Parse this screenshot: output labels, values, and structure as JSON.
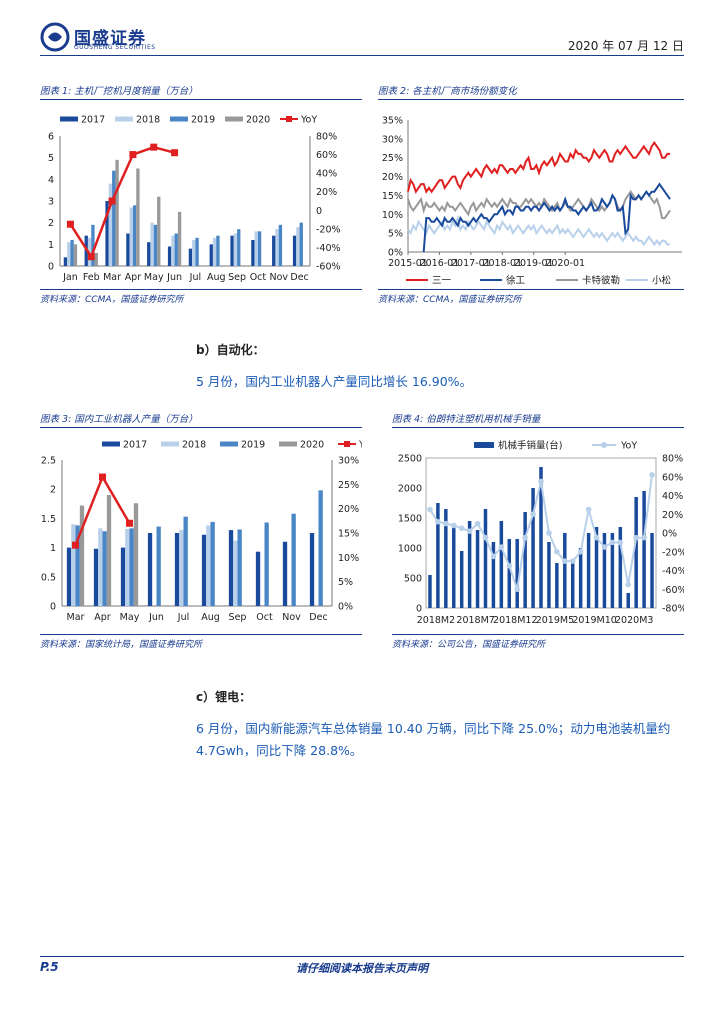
{
  "header": {
    "brand": "国盛证券",
    "brand_sub": "GUOSHENG SECURITIES",
    "date": "2020 年 07 月 12 日"
  },
  "fig1": {
    "caption": "图表 1: 主机厂挖机月度销量（万台）",
    "source": "资料来源：CCMA，国盛证券研究所"
  },
  "fig2": {
    "caption": "图表 2: 各主机厂商市场份额变化",
    "source": "资料来源：CCMA，国盛证券研究所"
  },
  "fig3": {
    "caption": "图表 3: 国内工业机器人产量（万台）",
    "source": "资料来源：国家统计局，国盛证券研究所"
  },
  "fig4": {
    "caption": "图表 4: 伯朗特注塑机用机械手销量",
    "source": "资料来源：公司公告，国盛证券研究所"
  },
  "section_b": {
    "title": "b）自动化：",
    "text": "5 月份，国内工业机器人产量同比增长 16.90%。"
  },
  "section_c": {
    "title": "c）锂电：",
    "text1": "6 月份，国内新能源汽车总体销量 10.40 万辆，同比下降 25.0%；动力电池装机量约",
    "text2": "4.7Gwh，同比下降 28.8%。"
  },
  "footer": {
    "page": "P.5",
    "disclaimer": "请仔细阅读本报告末页声明"
  },
  "colors": {
    "s2017": "#1a4a9c",
    "s2018": "#b8d0ea",
    "s2019": "#4a86c6",
    "s2020": "#999999",
    "yoy": "#e02020",
    "brand": "#1a3c8f"
  },
  "chart_data": [
    {
      "id": "fig1",
      "type": "bar",
      "categories": [
        "Jan",
        "Feb",
        "Mar",
        "Apr",
        "May",
        "Jun",
        "Jul",
        "Aug",
        "Sep",
        "Oct",
        "Nov",
        "Dec"
      ],
      "series": [
        {
          "name": "2017",
          "values": [
            0.4,
            1.4,
            3.0,
            1.5,
            1.1,
            0.9,
            0.8,
            1.0,
            1.4,
            1.2,
            1.4,
            1.4
          ]
        },
        {
          "name": "2018",
          "values": [
            1.1,
            1.3,
            3.8,
            2.7,
            2.0,
            1.4,
            1.2,
            1.3,
            1.5,
            1.6,
            1.7,
            1.8
          ]
        },
        {
          "name": "2019",
          "values": [
            1.2,
            1.9,
            4.4,
            2.8,
            1.9,
            1.5,
            1.3,
            1.4,
            1.7,
            1.6,
            1.9,
            2.0
          ]
        },
        {
          "name": "2020",
          "values": [
            1.0,
            0.6,
            4.9,
            4.5,
            3.2,
            2.5,
            null,
            null,
            null,
            null,
            null,
            null
          ]
        }
      ],
      "yoy": {
        "name": "YoY",
        "values": [
          -15,
          -50,
          10,
          60,
          68,
          62,
          null,
          null,
          null,
          null,
          null,
          null
        ]
      },
      "ylim": [
        0,
        6
      ],
      "yticks": [
        "0",
        "1",
        "2",
        "3",
        "4",
        "5",
        "6"
      ],
      "ylim2": [
        -60,
        80
      ],
      "y2ticks": [
        "-60%",
        "-40%",
        "-20%",
        "0",
        "20%",
        "40%",
        "60%",
        "80%"
      ],
      "legend": [
        "2017",
        "2018",
        "2019",
        "2020",
        "YoY"
      ]
    },
    {
      "id": "fig2",
      "type": "line",
      "xticks": [
        "2015-01",
        "2016-01",
        "2017-01",
        "2018-01",
        "2019-01",
        "2020-01"
      ],
      "yticks": [
        "0%",
        "5%",
        "10%",
        "15%",
        "20%",
        "25%",
        "30%",
        "35%"
      ],
      "ylim": [
        0,
        35
      ],
      "series": [
        {
          "name": "三一",
          "color": "#e02020",
          "values": [
            16,
            19,
            18,
            16,
            17,
            18,
            18,
            16,
            17,
            16,
            17,
            18,
            19,
            19,
            17,
            18,
            19,
            20,
            20,
            18,
            17,
            19,
            20,
            21,
            20,
            21,
            22,
            21,
            20,
            22,
            23,
            22,
            21,
            22,
            21,
            23,
            23,
            22,
            21,
            22,
            22,
            21,
            22,
            23,
            22,
            24,
            25,
            22,
            22,
            23,
            21,
            23,
            24,
            23,
            24,
            25,
            23,
            24,
            26,
            25,
            24,
            24,
            26,
            25,
            27,
            26,
            26,
            25,
            25,
            24,
            25,
            27,
            26,
            25,
            26,
            27,
            26,
            24,
            24,
            26,
            27,
            26,
            27,
            28,
            27,
            26,
            25,
            25,
            26,
            27,
            28,
            27,
            26,
            28,
            29,
            28,
            27,
            25,
            25,
            26,
            26
          ]
        },
        {
          "name": "徐工",
          "color": "#1a4a9c",
          "values": [
            null,
            null,
            null,
            null,
            null,
            null,
            0,
            9,
            9,
            8,
            8,
            9,
            8,
            7,
            9,
            8,
            8,
            9,
            8,
            7,
            9,
            8,
            8,
            7,
            8,
            9,
            8,
            9,
            10,
            9,
            9,
            8,
            9,
            10,
            10,
            11,
            12,
            10,
            11,
            11,
            10,
            12,
            12,
            11,
            11,
            12,
            12,
            11,
            12,
            12,
            11,
            12,
            13,
            12,
            11,
            12,
            11,
            12,
            11,
            12,
            14,
            12,
            12,
            11,
            11,
            10,
            11,
            12,
            11,
            12,
            13,
            11,
            11,
            12,
            14,
            13,
            12,
            13,
            15,
            14,
            11,
            11,
            12,
            5,
            6,
            15,
            14,
            14,
            15,
            14,
            15,
            16,
            15,
            16,
            16,
            17,
            18,
            17,
            16,
            15,
            14
          ]
        },
        {
          "name": "卡特彼勒",
          "color": "#999999",
          "values": [
            14,
            12,
            11,
            12,
            13,
            14,
            11,
            13,
            12,
            12,
            13,
            12,
            11,
            12,
            11,
            13,
            12,
            12,
            11,
            12,
            13,
            12,
            11,
            10,
            12,
            13,
            11,
            12,
            13,
            12,
            14,
            13,
            12,
            13,
            12,
            13,
            14,
            13,
            12,
            14,
            13,
            13,
            12,
            12,
            13,
            14,
            13,
            14,
            13,
            12,
            13,
            12,
            14,
            13,
            12,
            11,
            12,
            13,
            11,
            12,
            13,
            12,
            11,
            12,
            13,
            14,
            13,
            12,
            11,
            12,
            14,
            13,
            12,
            11,
            12,
            11,
            12,
            13,
            15,
            14,
            12,
            11,
            12,
            14,
            15,
            16,
            15,
            14,
            15,
            14,
            15,
            16,
            15,
            14,
            13,
            14,
            12,
            9,
            9,
            10,
            11
          ]
        },
        {
          "name": "小松",
          "color": "#b8d0ea",
          "values": [
            6,
            5,
            7,
            6,
            8,
            7,
            6,
            5,
            7,
            6,
            5,
            6,
            7,
            8,
            6,
            7,
            6,
            8,
            7,
            9,
            6,
            7,
            6,
            8,
            7,
            6,
            7,
            8,
            7,
            6,
            8,
            7,
            6,
            5,
            7,
            6,
            8,
            7,
            6,
            7,
            5,
            6,
            7,
            6,
            5,
            6,
            7,
            6,
            7,
            5,
            6,
            7,
            6,
            5,
            6,
            5,
            6,
            7,
            5,
            6,
            5,
            6,
            5,
            4,
            5,
            6,
            5,
            4,
            5,
            6,
            5,
            4,
            5,
            4,
            5,
            4,
            3,
            4,
            5,
            4,
            5,
            4,
            3,
            4,
            5,
            4,
            3,
            4,
            3,
            3,
            2,
            3,
            4,
            3,
            2,
            3,
            2,
            3,
            3,
            2,
            2
          ]
        }
      ]
    },
    {
      "id": "fig3",
      "type": "bar",
      "categories": [
        "Mar",
        "Apr",
        "May",
        "Jun",
        "Jul",
        "Aug",
        "Sep",
        "Oct",
        "Nov",
        "Dec"
      ],
      "series": [
        {
          "name": "2017",
          "values": [
            1.0,
            0.98,
            1.0,
            1.25,
            1.25,
            1.22,
            1.3,
            0.93,
            1.1,
            1.25
          ]
        },
        {
          "name": "2018",
          "values": [
            1.4,
            1.33,
            1.32,
            null,
            1.3,
            1.38,
            1.12,
            null,
            null,
            null
          ]
        },
        {
          "name": "2019",
          "values": [
            1.38,
            1.28,
            1.33,
            1.36,
            1.53,
            1.44,
            1.31,
            1.43,
            1.58,
            1.98
          ]
        },
        {
          "name": "2020",
          "values": [
            1.72,
            1.9,
            1.76,
            null,
            null,
            null,
            null,
            null,
            null,
            null
          ]
        }
      ],
      "yoy": {
        "name": "YoY",
        "values": [
          12.5,
          26.5,
          17,
          null,
          null,
          null,
          null,
          null,
          null,
          null
        ]
      },
      "ylim": [
        0,
        2.5
      ],
      "yticks": [
        "0",
        "0.5",
        "1",
        "1.5",
        "2",
        "2.5"
      ],
      "ylim2": [
        0,
        30
      ],
      "y2ticks": [
        "0%",
        "5%",
        "10%",
        "15%",
        "20%",
        "25%",
        "30%"
      ],
      "legend": [
        "2017",
        "2018",
        "2019",
        "2020",
        "YoY"
      ]
    },
    {
      "id": "fig4",
      "type": "bar",
      "xticks": [
        "2018M2",
        "2018M7",
        "2018M12",
        "2019M5",
        "2019M10",
        "2020M3"
      ],
      "series": [
        {
          "name": "机械手销量(台)",
          "values": [
            550,
            1750,
            1650,
            1400,
            950,
            1450,
            1300,
            1650,
            1100,
            1450,
            1150,
            1150,
            1600,
            2000,
            2350,
            1100,
            750,
            1250,
            800,
            1000,
            1250,
            1350,
            1250,
            1250,
            1350,
            250,
            1850,
            1950,
            1250
          ]
        }
      ],
      "yoy": {
        "name": "YoY",
        "values": [
          25,
          12,
          10,
          8,
          5,
          2,
          10,
          -5,
          -25,
          -15,
          -35,
          -60,
          -5,
          20,
          55,
          0,
          -20,
          -30,
          -30,
          -20,
          25,
          -5,
          -15,
          -10,
          -10,
          -55,
          -5,
          -5,
          62
        ]
      },
      "ylim": [
        0,
        2500
      ],
      "yticks": [
        "0",
        "500",
        "1000",
        "1500",
        "2000",
        "2500"
      ],
      "ylim2": [
        -80,
        80
      ],
      "y2ticks": [
        "-80%",
        "-60%",
        "-40%",
        "-20%",
        "0%",
        "20%",
        "40%",
        "60%",
        "80%"
      ],
      "legend": [
        "机械手销量(台)",
        "YoY"
      ]
    }
  ]
}
